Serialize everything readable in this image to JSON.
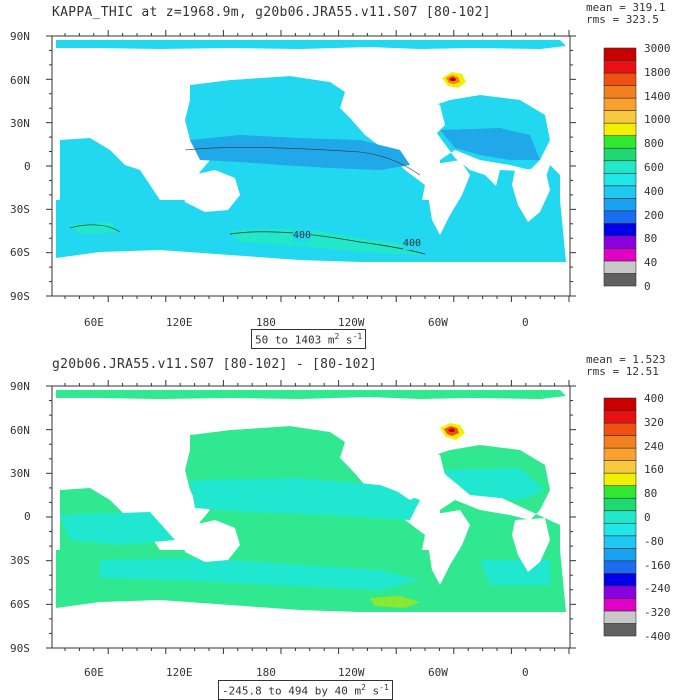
{
  "panels": [
    {
      "title": "KAPPA_THIC at z=1968.9m, g20b06.JRA55.v11.S07 [80-102]",
      "stat_mean": "mean = 319.1",
      "stat_rms": "rms = 323.5",
      "range_label": "50 to 1403 m",
      "range_unit_sup": "2",
      "range_unit_tail": " s",
      "range_unit_sup2": "-1",
      "contour_labels": [
        "400",
        "400"
      ],
      "colorbar": {
        "ticks": [
          "3000",
          "1800",
          "1400",
          "1000",
          "800",
          "600",
          "400",
          "200",
          "80",
          "40",
          "0"
        ],
        "colors": [
          "#606060",
          "#c8c8c8",
          "#e000c8",
          "#8a00e0",
          "#0000e8",
          "#1a6cf0",
          "#1aa0f0",
          "#1ec8f0",
          "#20e8e8",
          "#20e8c8",
          "#20d870",
          "#30e830",
          "#f0f000",
          "#f8c840",
          "#f8a030",
          "#f08020",
          "#f05010",
          "#e81010",
          "#c80000"
        ]
      }
    },
    {
      "title": "g20b06.JRA55.v11.S07 [80-102] -  [80-102]",
      "stat_mean": "mean = 1.523",
      "stat_rms": "rms = 12.51",
      "range_label": "-245.8 to 494 by 40 m",
      "range_unit_sup": "2",
      "range_unit_tail": " s",
      "range_unit_sup2": "-1",
      "colorbar": {
        "ticks": [
          "400",
          "320",
          "240",
          "160",
          "80",
          "0",
          "-80",
          "-160",
          "-240",
          "-320",
          "-400"
        ],
        "colors": [
          "#606060",
          "#c8c8c8",
          "#e000c8",
          "#8a00e0",
          "#0000e8",
          "#1a6cf0",
          "#1aa0f0",
          "#1ec8f0",
          "#20e8e8",
          "#20e8c8",
          "#20d870",
          "#30e830",
          "#f0f000",
          "#f8c840",
          "#f8a030",
          "#f08020",
          "#f05010",
          "#e81010",
          "#c80000"
        ]
      }
    }
  ],
  "lat_labels": [
    "90N",
    "60N",
    "30N",
    "0",
    "30S",
    "60S",
    "90S"
  ],
  "lon_labels": [
    "60E",
    "120E",
    "180",
    "120W",
    "60W",
    "0"
  ],
  "colors": {
    "top_ocean": "#22d8f0",
    "top_band": "#20a8e8",
    "top_teal": "#20e8c8",
    "bot_ocean": "#30e890",
    "bot_cyan": "#20e8d0",
    "land": "#ffffff"
  }
}
